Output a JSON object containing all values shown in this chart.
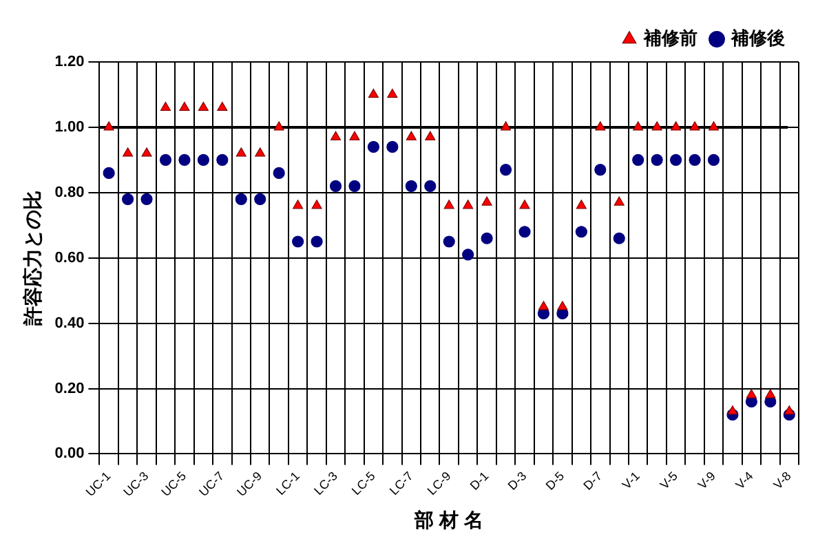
{
  "chart_data": {
    "type": "scatter",
    "xlabel": "部 材 名",
    "ylabel": "許容応力との比",
    "categories": [
      "UC-1",
      null,
      "UC-3",
      null,
      "UC-5",
      null,
      "UC-7",
      null,
      "UC-9",
      null,
      "LC-1",
      null,
      "LC-3",
      null,
      "LC-5",
      null,
      "LC-7",
      null,
      "LC-9",
      null,
      "D-1",
      null,
      "D-3",
      null,
      "D-5",
      null,
      "D-7",
      null,
      "V-1",
      null,
      "V-5",
      null,
      "V-9",
      null,
      "V-4",
      null,
      "V-8"
    ],
    "series": [
      {
        "name": "補修前",
        "color": "#ff0000",
        "marker": "triangle",
        "values": [
          1.0,
          0.92,
          0.92,
          1.06,
          1.06,
          1.06,
          1.06,
          0.92,
          0.92,
          1.0,
          0.76,
          0.76,
          0.97,
          0.97,
          1.1,
          1.1,
          0.97,
          0.97,
          0.76,
          0.76,
          0.77,
          1.0,
          0.76,
          0.45,
          0.45,
          0.76,
          1.0,
          0.77,
          1.0,
          1.0,
          1.0,
          1.0,
          1.0,
          0.13,
          0.18,
          0.18,
          0.13
        ]
      },
      {
        "name": "補修後",
        "color": "#000080",
        "marker": "circle",
        "values": [
          0.86,
          0.78,
          0.78,
          0.9,
          0.9,
          0.9,
          0.9,
          0.78,
          0.78,
          0.86,
          0.65,
          0.65,
          0.82,
          0.82,
          0.94,
          0.94,
          0.82,
          0.82,
          0.65,
          0.61,
          0.66,
          0.87,
          0.68,
          0.43,
          0.43,
          0.68,
          0.87,
          0.66,
          0.9,
          0.9,
          0.9,
          0.9,
          0.9,
          0.12,
          0.16,
          0.16,
          0.12
        ]
      }
    ],
    "ylim": [
      0,
      1.2
    ],
    "yticks": [
      {
        "value": 0,
        "label": "0.00"
      },
      {
        "value": 0.2,
        "label": "0.20"
      },
      {
        "value": 0.4,
        "label": "0.40"
      },
      {
        "value": 0.6,
        "label": "0.60"
      },
      {
        "value": 0.8,
        "label": "0.80"
      },
      {
        "value": 1.0,
        "label": "1.00"
      },
      {
        "value": 1.2,
        "label": "1.20"
      }
    ],
    "ref_lines": [
      {
        "axis": "y",
        "value": 1.0,
        "color": "#000000"
      }
    ],
    "grid": true,
    "legend": "top right"
  }
}
